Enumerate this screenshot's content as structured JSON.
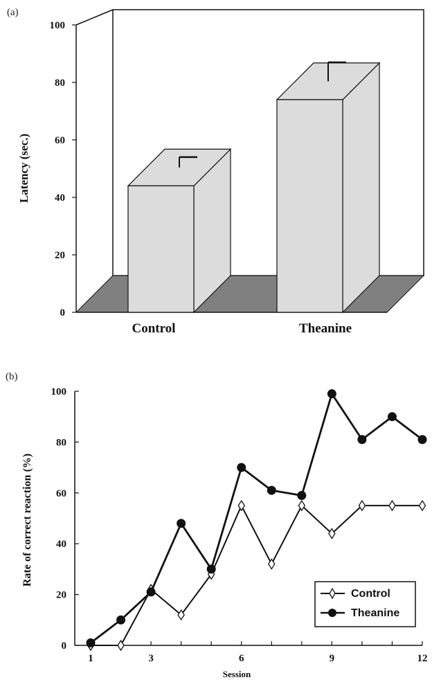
{
  "panels": {
    "a_label": "(a)",
    "b_label": "(b)"
  },
  "chart_data": [
    {
      "type": "bar",
      "categories": [
        "Control",
        "Theanine"
      ],
      "values": [
        44,
        74
      ],
      "error_upper": [
        54,
        87
      ],
      "title": "",
      "xlabel": "",
      "ylabel": "Latency (sec.)",
      "ylim": [
        0,
        100
      ],
      "yticks": [
        "0",
        "20",
        "40",
        "60",
        "80",
        "100"
      ],
      "style": "3d",
      "colors": {
        "bar": "#dcdcdc",
        "floor": "#808080"
      }
    },
    {
      "type": "line",
      "x": [
        1,
        2,
        3,
        4,
        5,
        6,
        7,
        8,
        9,
        10,
        11,
        12
      ],
      "xticks": [
        "1",
        "3",
        "6",
        "9",
        "12"
      ],
      "series": [
        {
          "name": "Control",
          "marker": "open-diamond",
          "values": [
            0,
            0,
            22,
            12,
            28,
            55,
            32,
            55,
            44,
            55,
            55,
            55
          ]
        },
        {
          "name": "Theanine",
          "marker": "filled-circle",
          "values": [
            1,
            10,
            21,
            48,
            30,
            70,
            61,
            59,
            99,
            81,
            90,
            81
          ]
        }
      ],
      "title": "",
      "xlabel": "Session",
      "ylabel": "Rate of correct reaction (%)",
      "ylim": [
        0,
        100
      ],
      "yticks": [
        "0",
        "20",
        "40",
        "60",
        "80",
        "100"
      ],
      "legend": "bottom-right"
    }
  ]
}
